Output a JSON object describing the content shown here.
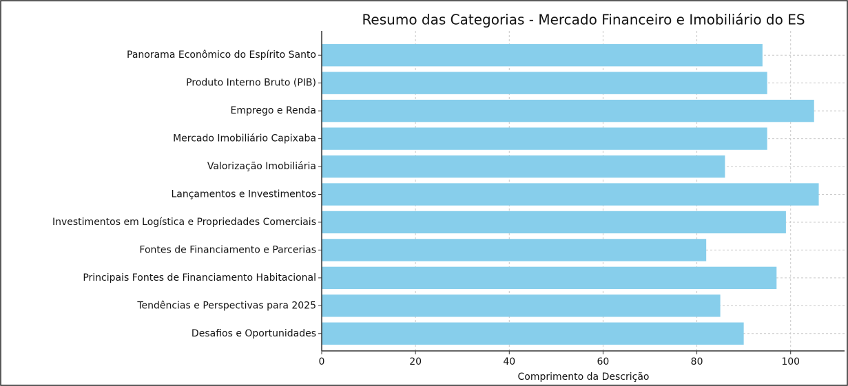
{
  "chart_data": {
    "type": "bar",
    "orientation": "horizontal",
    "title": "Resumo das Categorias - Mercado Financeiro e Imobiliário do ES",
    "x_label": "Comprimento da Descrição",
    "categories": [
      "Panorama Econômico do Espírito Santo",
      "Produto Interno Bruto (PIB)",
      "Emprego e Renda",
      "Mercado Imobiliário Capixaba",
      "Valorização Imobiliária",
      "Lançamentos e Investimentos",
      "Investimentos em Logística e Propriedades Comerciais",
      "Fontes de Financiamento e Parcerias",
      "Principais Fontes de Financiamento Habitacional",
      "Tendências e Perspectivas para 2025",
      "Desafios e Oportunidades"
    ],
    "values": [
      94,
      95,
      105,
      95,
      86,
      106,
      99,
      82,
      97,
      85,
      90
    ],
    "color": "#87ceeb",
    "xlim": [
      0,
      111.5
    ],
    "xticks": [
      0,
      20,
      40,
      60,
      80,
      100
    ],
    "grid": true
  }
}
